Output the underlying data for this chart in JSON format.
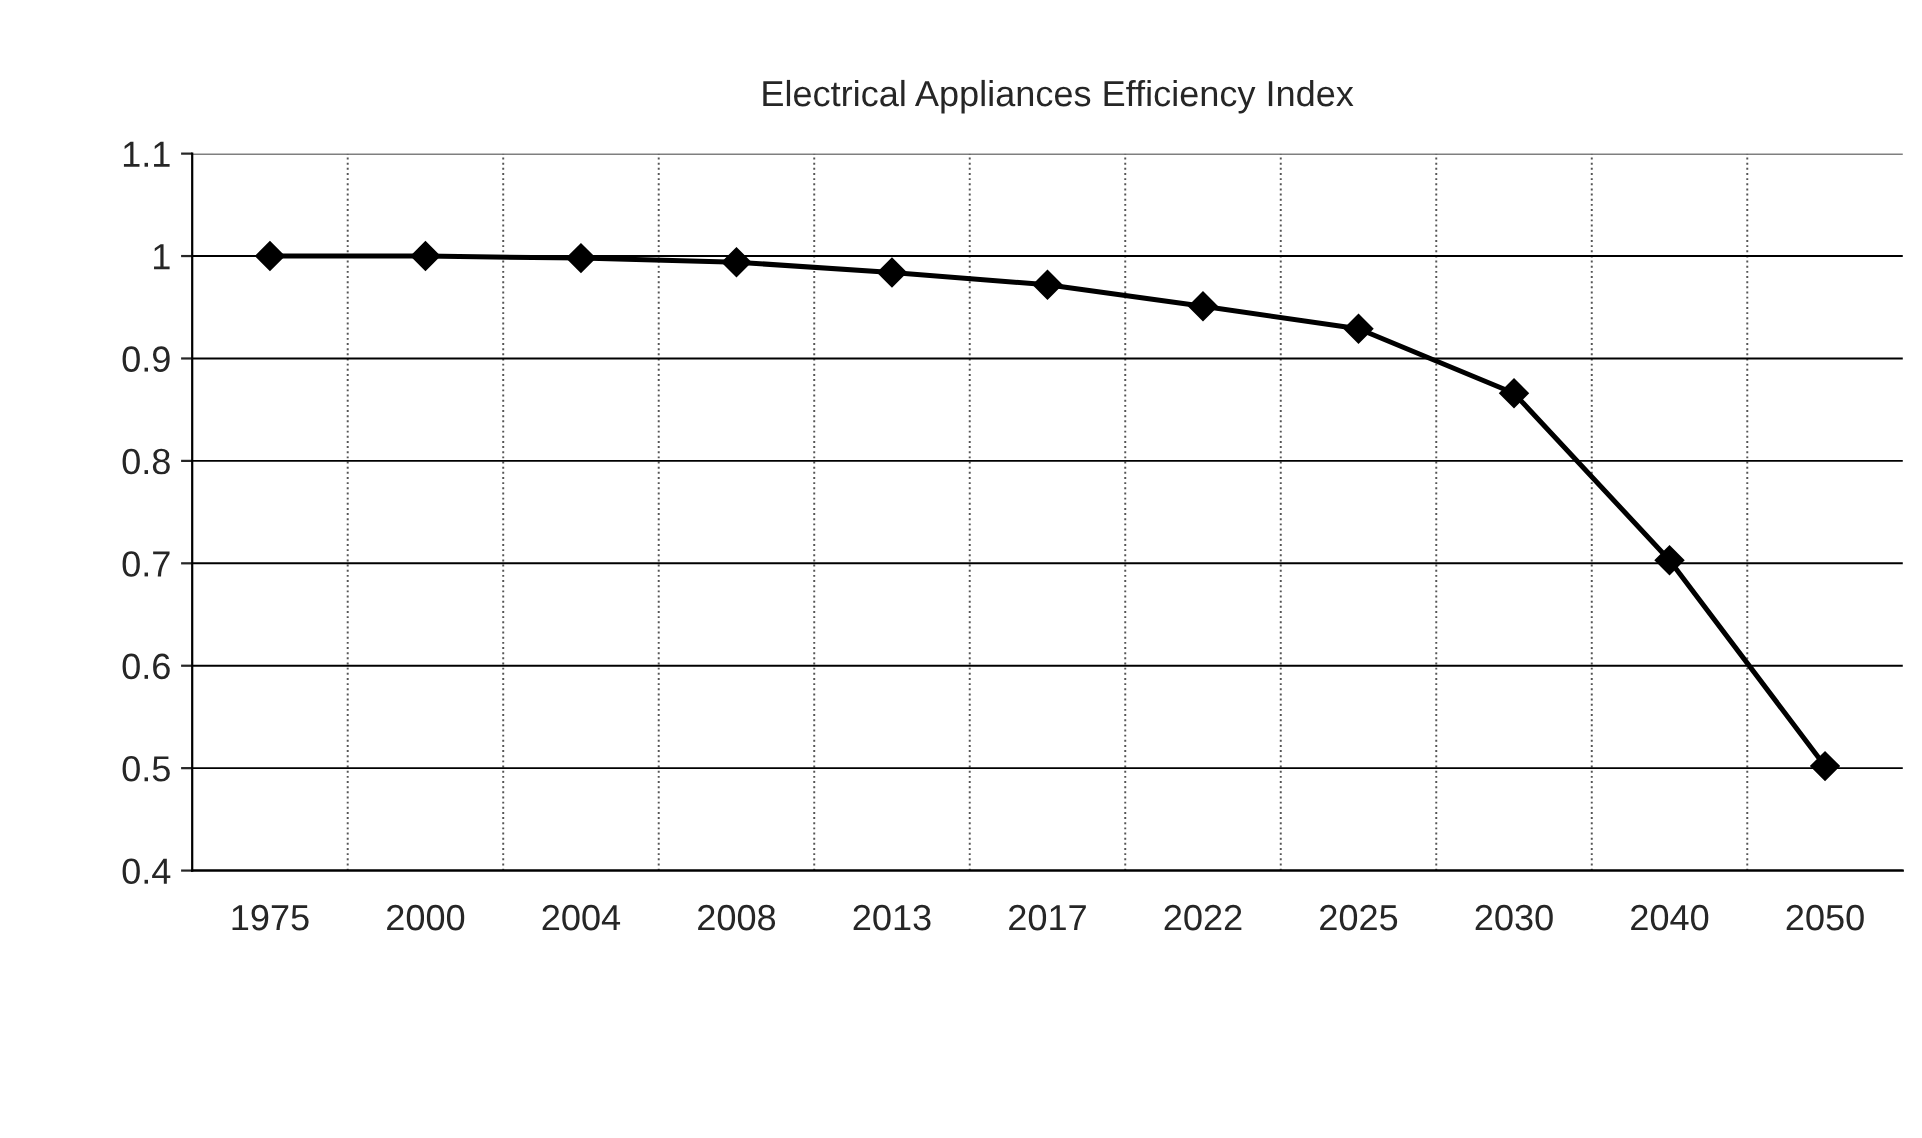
{
  "chart_data": {
    "type": "line",
    "title": "Electrical Appliances Efficiency Index",
    "categories": [
      "1975",
      "2000",
      "2004",
      "2008",
      "2013",
      "2017",
      "2022",
      "2025",
      "2030",
      "2040",
      "2050"
    ],
    "series": [
      {
        "color": "#000000",
        "values": [
          1.0,
          1.0,
          0.998,
          0.994,
          0.984,
          0.972,
          0.951,
          0.929,
          0.866,
          0.703,
          0.502
        ]
      }
    ],
    "ylim": [
      0.4,
      1.1
    ],
    "yticks": [
      0.4,
      0.5,
      0.6,
      0.7,
      0.8,
      0.9,
      1,
      1.1
    ],
    "grid": true,
    "marker": "diamond",
    "line_style": "solid",
    "legend": false
  }
}
